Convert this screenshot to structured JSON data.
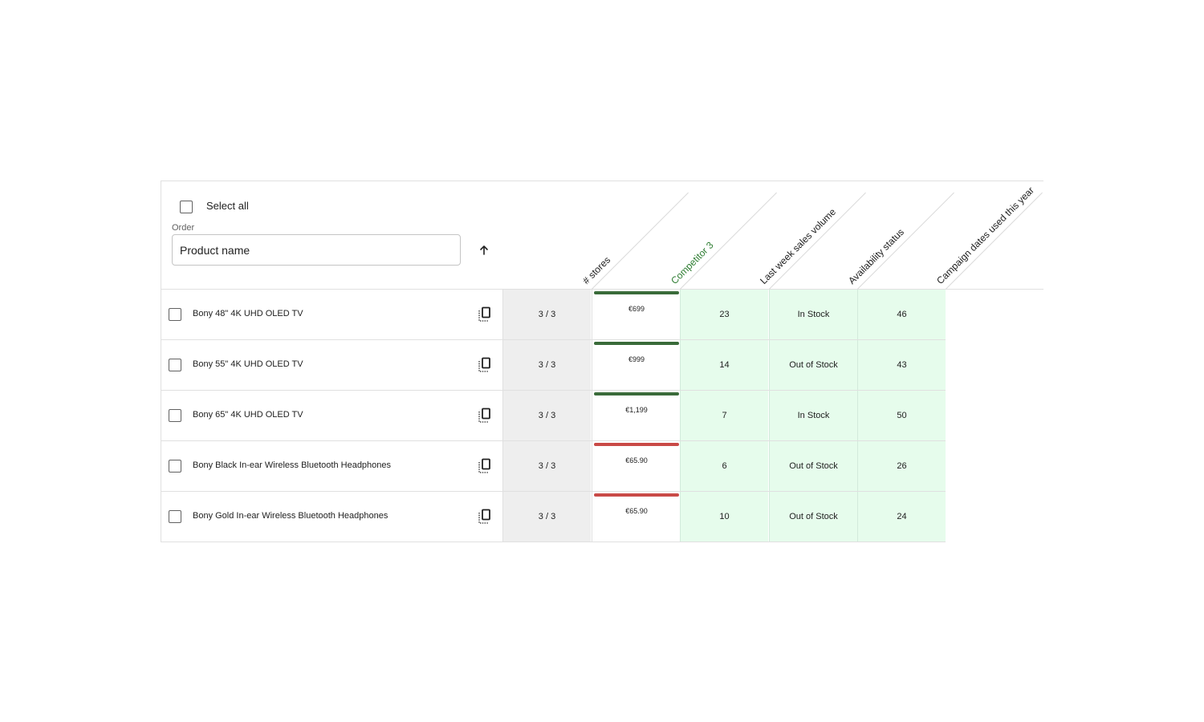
{
  "header": {
    "select_all_label": "Select all",
    "order_label": "Order",
    "order_value": "Product name",
    "sort_direction": "ascending"
  },
  "columns": [
    {
      "label": "# stores",
      "color": "#212121"
    },
    {
      "label": "Competitor 3",
      "color": "#2e7d32"
    },
    {
      "label": "Last week sales volume",
      "color": "#212121"
    },
    {
      "label": "Availability status",
      "color": "#212121"
    },
    {
      "label": "Campaign dates used this year",
      "color": "#212121"
    }
  ],
  "colors": {
    "bar_good": "#3a6b3a",
    "bar_bad": "#c94a47",
    "stores_bg": "#eeeeee",
    "metric_bg": "#e6fcec"
  },
  "rows": [
    {
      "name": "Bony 48\" 4K UHD OLED TV",
      "stores": "3 / 3",
      "competitor_price": "€699",
      "bar_status": "good",
      "sales": "23",
      "availability": "In Stock",
      "campaign_dates": "46"
    },
    {
      "name": "Bony 55\" 4K UHD OLED TV",
      "stores": "3 / 3",
      "competitor_price": "€999",
      "bar_status": "good",
      "sales": "14",
      "availability": "Out of Stock",
      "campaign_dates": "43"
    },
    {
      "name": "Bony 65\" 4K UHD OLED TV",
      "stores": "3 / 3",
      "competitor_price": "€1,199",
      "bar_status": "good",
      "sales": "7",
      "availability": "In Stock",
      "campaign_dates": "50"
    },
    {
      "name": "Bony Black In-ear Wireless Bluetooth Headphones",
      "stores": "3 / 3",
      "competitor_price": "€65.90",
      "bar_status": "bad",
      "sales": "6",
      "availability": "Out of Stock",
      "campaign_dates": "26"
    },
    {
      "name": "Bony Gold In-ear Wireless Bluetooth Headphones",
      "stores": "3 / 3",
      "competitor_price": "€65.90",
      "bar_status": "bad",
      "sales": "10",
      "availability": "Out of Stock",
      "campaign_dates": "24"
    }
  ]
}
